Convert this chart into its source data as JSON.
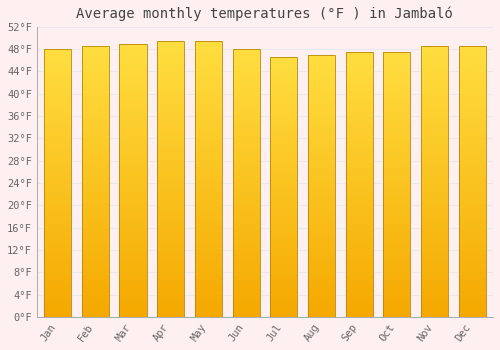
{
  "title": "Average monthly temperatures (°F ) in Jambaló",
  "months": [
    "Jan",
    "Feb",
    "Mar",
    "Apr",
    "May",
    "Jun",
    "Jul",
    "Aug",
    "Sep",
    "Oct",
    "Nov",
    "Dec"
  ],
  "values": [
    48.0,
    48.5,
    49.0,
    49.5,
    49.5,
    48.0,
    46.5,
    47.0,
    47.5,
    47.5,
    48.5,
    48.5
  ],
  "bar_color_bottom": "#F5A800",
  "bar_color_top": "#FFD84D",
  "bar_edge_color": "#B8860B",
  "background_color": "#fef0f0",
  "plot_bg_color": "#fef0f0",
  "grid_color": "#e8e8ee",
  "ylim": [
    0,
    52
  ],
  "yticks": [
    0,
    4,
    8,
    12,
    16,
    20,
    24,
    28,
    32,
    36,
    40,
    44,
    48,
    52
  ],
  "ytick_labels": [
    "0°F",
    "4°F",
    "8°F",
    "12°F",
    "16°F",
    "20°F",
    "24°F",
    "28°F",
    "32°F",
    "36°F",
    "40°F",
    "44°F",
    "48°F",
    "52°F"
  ],
  "title_fontsize": 10,
  "tick_fontsize": 7.5,
  "title_color": "#444444",
  "tick_color": "#666666"
}
